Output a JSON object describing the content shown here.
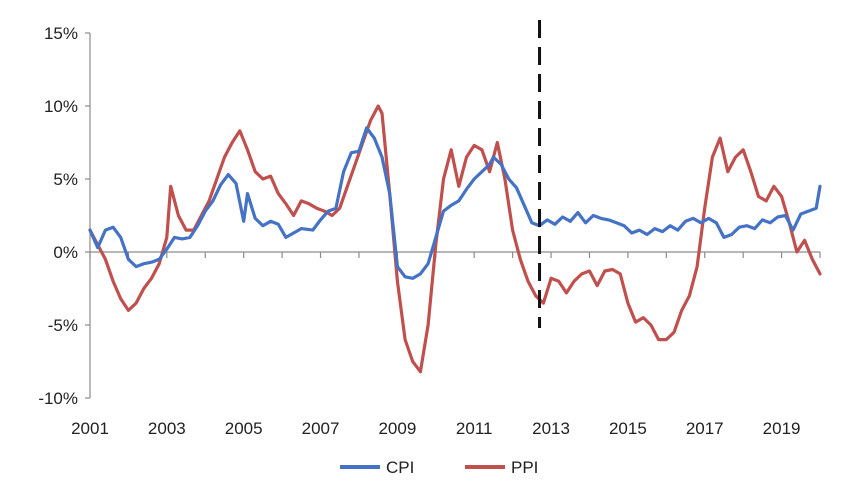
{
  "chart_data": {
    "type": "line",
    "title": "",
    "xlabel": "",
    "ylabel": "",
    "x_ticks": [
      "2001",
      "2003",
      "2005",
      "2007",
      "2009",
      "2011",
      "2013",
      "2015",
      "2017",
      "2019"
    ],
    "y_ticks": [
      "15%",
      "10%",
      "5%",
      "0%",
      "-5%",
      "-10%"
    ],
    "xlim": [
      2001,
      2020
    ],
    "ylim": [
      -10,
      15
    ],
    "grid": false,
    "legend": "bottom",
    "reference_line": {
      "x": 2012.7,
      "style": "dashed",
      "color": "#111111"
    },
    "series": [
      {
        "name": "CPI",
        "color": "#4472C4",
        "points": [
          [
            2001.0,
            1.5
          ],
          [
            2001.2,
            0.3
          ],
          [
            2001.4,
            1.5
          ],
          [
            2001.6,
            1.7
          ],
          [
            2001.8,
            1.0
          ],
          [
            2002.0,
            -0.5
          ],
          [
            2002.2,
            -1.0
          ],
          [
            2002.4,
            -0.8
          ],
          [
            2002.6,
            -0.7
          ],
          [
            2002.8,
            -0.5
          ],
          [
            2003.0,
            0.2
          ],
          [
            2003.2,
            1.0
          ],
          [
            2003.4,
            0.9
          ],
          [
            2003.6,
            1.0
          ],
          [
            2003.8,
            1.8
          ],
          [
            2004.0,
            2.8
          ],
          [
            2004.2,
            3.5
          ],
          [
            2004.4,
            4.6
          ],
          [
            2004.6,
            5.3
          ],
          [
            2004.8,
            4.7
          ],
          [
            2005.0,
            2.1
          ],
          [
            2005.1,
            4.0
          ],
          [
            2005.3,
            2.3
          ],
          [
            2005.5,
            1.8
          ],
          [
            2005.7,
            2.1
          ],
          [
            2005.9,
            1.9
          ],
          [
            2006.1,
            1.0
          ],
          [
            2006.3,
            1.3
          ],
          [
            2006.5,
            1.6
          ],
          [
            2006.8,
            1.5
          ],
          [
            2007.0,
            2.2
          ],
          [
            2007.2,
            2.8
          ],
          [
            2007.4,
            3.0
          ],
          [
            2007.6,
            5.5
          ],
          [
            2007.8,
            6.8
          ],
          [
            2008.0,
            6.9
          ],
          [
            2008.2,
            8.5
          ],
          [
            2008.4,
            7.8
          ],
          [
            2008.6,
            6.5
          ],
          [
            2008.8,
            4.0
          ],
          [
            2009.0,
            -1.0
          ],
          [
            2009.2,
            -1.7
          ],
          [
            2009.4,
            -1.8
          ],
          [
            2009.6,
            -1.5
          ],
          [
            2009.8,
            -0.8
          ],
          [
            2010.0,
            1.0
          ],
          [
            2010.2,
            2.8
          ],
          [
            2010.4,
            3.2
          ],
          [
            2010.6,
            3.5
          ],
          [
            2010.8,
            4.3
          ],
          [
            2011.0,
            5.0
          ],
          [
            2011.2,
            5.5
          ],
          [
            2011.4,
            6.0
          ],
          [
            2011.5,
            6.5
          ],
          [
            2011.7,
            6.0
          ],
          [
            2011.9,
            5.0
          ],
          [
            2012.1,
            4.4
          ],
          [
            2012.3,
            3.2
          ],
          [
            2012.5,
            2.0
          ],
          [
            2012.7,
            1.8
          ],
          [
            2012.9,
            2.2
          ],
          [
            2013.1,
            1.9
          ],
          [
            2013.3,
            2.4
          ],
          [
            2013.5,
            2.1
          ],
          [
            2013.7,
            2.7
          ],
          [
            2013.9,
            2.0
          ],
          [
            2014.1,
            2.5
          ],
          [
            2014.3,
            2.3
          ],
          [
            2014.5,
            2.2
          ],
          [
            2014.7,
            2.0
          ],
          [
            2014.9,
            1.8
          ],
          [
            2015.1,
            1.3
          ],
          [
            2015.3,
            1.5
          ],
          [
            2015.5,
            1.2
          ],
          [
            2015.7,
            1.6
          ],
          [
            2015.9,
            1.4
          ],
          [
            2016.1,
            1.8
          ],
          [
            2016.3,
            1.5
          ],
          [
            2016.5,
            2.1
          ],
          [
            2016.7,
            2.3
          ],
          [
            2016.9,
            2.0
          ],
          [
            2017.1,
            2.3
          ],
          [
            2017.3,
            2.0
          ],
          [
            2017.5,
            1.0
          ],
          [
            2017.7,
            1.2
          ],
          [
            2017.9,
            1.7
          ],
          [
            2018.1,
            1.8
          ],
          [
            2018.3,
            1.6
          ],
          [
            2018.5,
            2.2
          ],
          [
            2018.7,
            2.0
          ],
          [
            2018.9,
            2.4
          ],
          [
            2019.1,
            2.5
          ],
          [
            2019.3,
            1.5
          ],
          [
            2019.5,
            2.6
          ],
          [
            2019.7,
            2.8
          ],
          [
            2019.9,
            3.0
          ],
          [
            2020.0,
            4.5
          ]
        ]
      },
      {
        "name": "PPI",
        "color": "#C0504D",
        "points": [
          [
            2001.0,
            1.5
          ],
          [
            2001.2,
            0.5
          ],
          [
            2001.4,
            -0.5
          ],
          [
            2001.6,
            -2.0
          ],
          [
            2001.8,
            -3.2
          ],
          [
            2002.0,
            -4.0
          ],
          [
            2002.2,
            -3.5
          ],
          [
            2002.4,
            -2.5
          ],
          [
            2002.6,
            -1.8
          ],
          [
            2002.8,
            -0.8
          ],
          [
            2003.0,
            1.0
          ],
          [
            2003.1,
            4.5
          ],
          [
            2003.3,
            2.5
          ],
          [
            2003.5,
            1.5
          ],
          [
            2003.7,
            1.5
          ],
          [
            2003.9,
            2.5
          ],
          [
            2004.1,
            3.5
          ],
          [
            2004.3,
            5.0
          ],
          [
            2004.5,
            6.5
          ],
          [
            2004.7,
            7.5
          ],
          [
            2004.9,
            8.3
          ],
          [
            2005.1,
            7.0
          ],
          [
            2005.3,
            5.5
          ],
          [
            2005.5,
            5.0
          ],
          [
            2005.7,
            5.2
          ],
          [
            2005.9,
            4.0
          ],
          [
            2006.1,
            3.3
          ],
          [
            2006.3,
            2.5
          ],
          [
            2006.5,
            3.5
          ],
          [
            2006.7,
            3.3
          ],
          [
            2006.9,
            3.0
          ],
          [
            2007.1,
            2.8
          ],
          [
            2007.3,
            2.5
          ],
          [
            2007.5,
            3.0
          ],
          [
            2007.7,
            4.5
          ],
          [
            2007.9,
            6.0
          ],
          [
            2008.1,
            7.5
          ],
          [
            2008.3,
            9.0
          ],
          [
            2008.5,
            10.0
          ],
          [
            2008.6,
            9.5
          ],
          [
            2008.8,
            4.0
          ],
          [
            2009.0,
            -2.0
          ],
          [
            2009.2,
            -6.0
          ],
          [
            2009.4,
            -7.5
          ],
          [
            2009.6,
            -8.2
          ],
          [
            2009.8,
            -5.0
          ],
          [
            2010.0,
            0.5
          ],
          [
            2010.2,
            5.0
          ],
          [
            2010.4,
            7.0
          ],
          [
            2010.6,
            4.5
          ],
          [
            2010.8,
            6.5
          ],
          [
            2011.0,
            7.3
          ],
          [
            2011.2,
            7.0
          ],
          [
            2011.4,
            5.5
          ],
          [
            2011.6,
            7.5
          ],
          [
            2011.8,
            5.0
          ],
          [
            2012.0,
            1.5
          ],
          [
            2012.2,
            -0.5
          ],
          [
            2012.4,
            -2.0
          ],
          [
            2012.6,
            -3.0
          ],
          [
            2012.8,
            -3.5
          ],
          [
            2013.0,
            -1.8
          ],
          [
            2013.2,
            -2.0
          ],
          [
            2013.4,
            -2.8
          ],
          [
            2013.6,
            -2.0
          ],
          [
            2013.8,
            -1.5
          ],
          [
            2014.0,
            -1.3
          ],
          [
            2014.2,
            -2.3
          ],
          [
            2014.4,
            -1.3
          ],
          [
            2014.6,
            -1.2
          ],
          [
            2014.8,
            -1.5
          ],
          [
            2015.0,
            -3.5
          ],
          [
            2015.2,
            -4.8
          ],
          [
            2015.4,
            -4.5
          ],
          [
            2015.6,
            -5.0
          ],
          [
            2015.8,
            -6.0
          ],
          [
            2016.0,
            -6.0
          ],
          [
            2016.2,
            -5.5
          ],
          [
            2016.4,
            -4.0
          ],
          [
            2016.6,
            -3.0
          ],
          [
            2016.8,
            -1.0
          ],
          [
            2017.0,
            3.0
          ],
          [
            2017.2,
            6.5
          ],
          [
            2017.4,
            7.8
          ],
          [
            2017.6,
            5.5
          ],
          [
            2017.8,
            6.5
          ],
          [
            2018.0,
            7.0
          ],
          [
            2018.2,
            5.5
          ],
          [
            2018.4,
            3.8
          ],
          [
            2018.6,
            3.5
          ],
          [
            2018.8,
            4.5
          ],
          [
            2019.0,
            3.8
          ],
          [
            2019.2,
            2.0
          ],
          [
            2019.4,
            0.0
          ],
          [
            2019.6,
            0.8
          ],
          [
            2019.8,
            -0.5
          ],
          [
            2020.0,
            -1.5
          ]
        ]
      }
    ]
  }
}
